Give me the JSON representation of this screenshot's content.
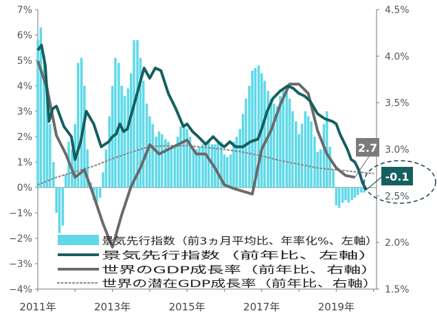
{
  "chart_data": {
    "type": "bar+line",
    "left_axis": {
      "ylim": [
        -4,
        7
      ],
      "ticks": [
        7,
        6,
        5,
        4,
        3,
        2,
        1,
        0,
        -1,
        -2,
        -3,
        -4
      ],
      "tick_labels": [
        "7%",
        "6%",
        "5%",
        "4%",
        "3%",
        "2%",
        "1%",
        "0%",
        "−1%",
        "−2%",
        "−3%",
        "−4%"
      ]
    },
    "right_axis": {
      "ylim": [
        1.5,
        4.5
      ],
      "ticks": [
        4.5,
        4.0,
        3.5,
        3.0,
        2.5,
        2.0,
        1.5
      ],
      "tick_labels": [
        "4.5%",
        "4.0%",
        "3.5%",
        "3.0%",
        "2.5%",
        "2.0%",
        "1.5%"
      ]
    },
    "x_axis": {
      "range": [
        2011.0,
        2020.08
      ],
      "tick_labels": [
        "2011年",
        "2013年",
        "2015年",
        "2017年",
        "2019年"
      ],
      "tick_values": [
        2011,
        2013,
        2015,
        2017,
        2019
      ]
    },
    "callouts": [
      {
        "text": "2.7",
        "series": "世界のGDP成長率（前年比、右軸）"
      },
      {
        "text": "-0.1",
        "series": "景気先行指数（前年比、左軸）"
      }
    ],
    "series": [
      {
        "name": "景気先行指数（前3ヵ月平均比、年率化%、左軸）",
        "type": "bar",
        "axis": "left",
        "color": "#5fd9e8",
        "x": [
          2011.0,
          2011.08,
          2011.17,
          2011.25,
          2011.33,
          2011.42,
          2011.5,
          2011.58,
          2011.67,
          2011.75,
          2011.83,
          2011.92,
          2012.0,
          2012.08,
          2012.17,
          2012.25,
          2012.33,
          2012.42,
          2012.5,
          2012.58,
          2012.67,
          2012.75,
          2012.83,
          2012.92,
          2013.0,
          2013.08,
          2013.17,
          2013.25,
          2013.33,
          2013.42,
          2013.5,
          2013.58,
          2013.67,
          2013.75,
          2013.83,
          2013.92,
          2014.0,
          2014.08,
          2014.17,
          2014.25,
          2014.33,
          2014.42,
          2014.5,
          2014.58,
          2014.67,
          2014.75,
          2014.83,
          2014.92,
          2015.0,
          2015.08,
          2015.17,
          2015.25,
          2015.33,
          2015.42,
          2015.5,
          2015.58,
          2015.67,
          2015.75,
          2015.83,
          2015.92,
          2016.0,
          2016.08,
          2016.17,
          2016.25,
          2016.33,
          2016.42,
          2016.5,
          2016.58,
          2016.67,
          2016.75,
          2016.83,
          2016.92,
          2017.0,
          2017.08,
          2017.17,
          2017.25,
          2017.33,
          2017.42,
          2017.5,
          2017.58,
          2017.67,
          2017.75,
          2017.83,
          2017.92,
          2018.0,
          2018.08,
          2018.17,
          2018.25,
          2018.33,
          2018.42,
          2018.5,
          2018.58,
          2018.67,
          2018.75,
          2018.83,
          2018.92,
          2019.0,
          2019.08,
          2019.17,
          2019.25,
          2019.33,
          2019.42,
          2019.5,
          2019.58,
          2019.67,
          2019.75
        ],
        "values": [
          5.8,
          6.3,
          5.2,
          4.0,
          2.5,
          1.0,
          -1.0,
          -1.8,
          -1.5,
          0.5,
          1.8,
          1.5,
          2.5,
          4.9,
          5.1,
          4.0,
          1.5,
          0.2,
          -0.5,
          -0.6,
          -0.4,
          0.6,
          1.5,
          2.8,
          4.0,
          5.1,
          4.9,
          4.0,
          3.6,
          3.9,
          4.5,
          5.8,
          5.8,
          5.1,
          4.2,
          3.3,
          2.8,
          2.5,
          2.0,
          2.2,
          2.1,
          1.9,
          1.8,
          1.6,
          1.6,
          2.0,
          2.4,
          2.4,
          2.3,
          2.0,
          1.5,
          1.5,
          1.6,
          1.7,
          1.8,
          1.8,
          1.7,
          1.7,
          1.8,
          1.8,
          1.3,
          1.2,
          1.3,
          1.8,
          2.0,
          2.3,
          2.9,
          3.5,
          4.0,
          4.6,
          4.7,
          4.8,
          4.5,
          4.2,
          3.8,
          3.5,
          3.3,
          3.2,
          3.6,
          3.9,
          3.9,
          3.5,
          3.0,
          2.6,
          2.1,
          2.5,
          3.0,
          2.8,
          2.6,
          2.0,
          1.4,
          1.5,
          2.5,
          3.0,
          1.6,
          0.7,
          -0.7,
          -0.8,
          -0.6,
          -0.5,
          -0.6,
          -0.5,
          -0.4,
          -0.3,
          -0.2,
          -0.2
        ]
      },
      {
        "name": "景気先行指数（前年比、左軸）",
        "type": "line",
        "axis": "left",
        "color": "#155f60",
        "x": [
          2011.0,
          2011.1,
          2011.2,
          2011.3,
          2011.4,
          2011.5,
          2011.7,
          2011.9,
          2012.0,
          2012.15,
          2012.3,
          2012.5,
          2012.7,
          2012.9,
          2013.0,
          2013.1,
          2013.2,
          2013.3,
          2013.4,
          2013.55,
          2013.7,
          2013.85,
          2014.0,
          2014.15,
          2014.3,
          2014.5,
          2014.7,
          2014.9,
          2015.0,
          2015.15,
          2015.3,
          2015.5,
          2015.7,
          2015.9,
          2016.0,
          2016.15,
          2016.3,
          2016.5,
          2016.7,
          2016.9,
          2017.0,
          2017.15,
          2017.3,
          2017.5,
          2017.7,
          2017.85,
          2018.0,
          2018.15,
          2018.3,
          2018.5,
          2018.7,
          2018.9,
          2019.0,
          2019.1,
          2019.2,
          2019.3,
          2019.4,
          2019.5,
          2019.6,
          2019.7,
          2019.8
        ],
        "values": [
          5.4,
          5.6,
          4.8,
          2.6,
          3.1,
          3.2,
          2.4,
          2.0,
          1.1,
          1.8,
          3.0,
          2.5,
          1.6,
          1.8,
          2.0,
          2.1,
          2.5,
          2.2,
          2.3,
          3.1,
          3.9,
          4.7,
          4.3,
          4.7,
          4.6,
          3.7,
          3.1,
          2.4,
          2.5,
          2.2,
          2.0,
          1.7,
          2.0,
          1.7,
          1.6,
          1.8,
          1.6,
          1.6,
          1.8,
          1.9,
          2.3,
          3.0,
          3.5,
          3.8,
          4.0,
          3.9,
          3.7,
          3.6,
          3.4,
          2.9,
          2.7,
          2.6,
          2.5,
          2.1,
          1.8,
          1.5,
          1.1,
          1.0,
          0.7,
          0.2,
          -0.1
        ]
      },
      {
        "name": "世界のGDP成長率（前年比、右軸）",
        "type": "line",
        "axis": "right",
        "color": "#6a6a6a",
        "x": [
          2011.0,
          2011.25,
          2011.5,
          2011.75,
          2012.0,
          2012.25,
          2012.5,
          2012.75,
          2013.0,
          2013.25,
          2013.5,
          2013.75,
          2014.0,
          2014.25,
          2014.5,
          2014.75,
          2015.0,
          2015.25,
          2015.5,
          2015.75,
          2016.0,
          2016.25,
          2016.5,
          2016.75,
          2017.0,
          2017.25,
          2017.5,
          2017.75,
          2018.0,
          2018.25,
          2018.5,
          2018.75,
          2019.0,
          2019.25,
          2019.5
        ],
        "values": [
          3.95,
          3.65,
          3.15,
          2.95,
          2.7,
          2.78,
          2.5,
          2.2,
          1.95,
          2.3,
          2.6,
          2.8,
          3.05,
          2.95,
          3.0,
          3.05,
          3.1,
          2.95,
          2.95,
          2.8,
          2.62,
          2.58,
          2.55,
          2.52,
          3.0,
          3.2,
          3.48,
          3.7,
          3.7,
          3.6,
          3.2,
          2.95,
          2.8,
          2.72,
          2.7
        ]
      },
      {
        "name": "世界の潜在GDP成長率（前年比、右軸）",
        "type": "line-dotted",
        "axis": "right",
        "color": "#8c8c8c",
        "x": [
          2011.0,
          2011.5,
          2012.0,
          2012.5,
          2013.0,
          2013.5,
          2014.0,
          2014.5,
          2015.0,
          2015.5,
          2016.0,
          2016.5,
          2017.0,
          2017.5,
          2018.0,
          2018.5,
          2019.0,
          2019.5,
          2020.0
        ],
        "values": [
          2.62,
          2.7,
          2.76,
          2.82,
          2.9,
          2.97,
          3.03,
          3.04,
          3.04,
          3.02,
          3.0,
          2.97,
          2.93,
          2.88,
          2.84,
          2.8,
          2.78,
          2.76,
          2.74
        ]
      }
    ]
  }
}
